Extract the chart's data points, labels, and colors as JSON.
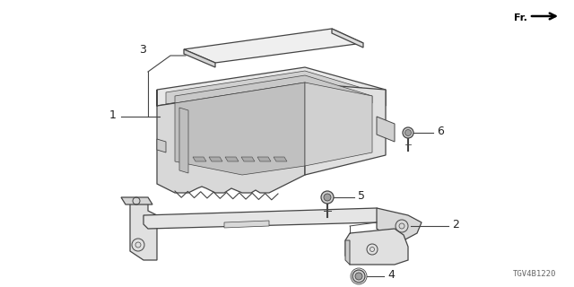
{
  "background_color": "#ffffff",
  "diagram_code": "TGV4B1220",
  "line_color": "#444444",
  "text_color": "#222222",
  "label_color": "#555555",
  "lw": 0.9
}
